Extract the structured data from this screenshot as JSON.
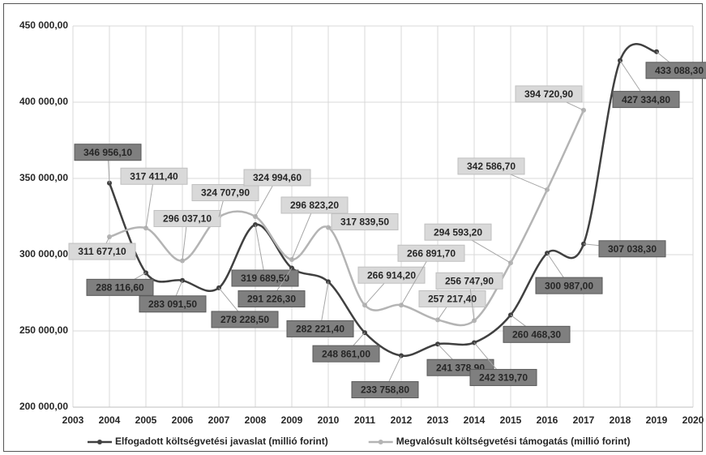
{
  "chart_data": {
    "type": "line",
    "x": [
      2004,
      2005,
      2006,
      2007,
      2008,
      2009,
      2010,
      2011,
      2012,
      2013,
      2014,
      2015,
      2016,
      2017,
      2018,
      2019
    ],
    "series": [
      {
        "name": "Elfogadott költségvetési javaslat (millió forint)",
        "color": "#404040",
        "values": [
          346956.1,
          288116.6,
          283091.5,
          278228.5,
          319689.5,
          291226.3,
          282221.4,
          248861.0,
          233758.8,
          241378.9,
          242319.7,
          260468.3,
          300987.0,
          307038.3,
          427334.8,
          433088.3
        ],
        "value_labels": [
          "346 956,10",
          "288 116,60",
          "283 091,50",
          "278 228,50",
          "319 689,50",
          "291 226,30",
          "282 221,40",
          "248 861,00",
          "233 758,80",
          "241 378,90",
          "242 319,70",
          "260 468,30",
          "300 987,00",
          "307 038,30",
          "427 334,80",
          "433 088,30"
        ]
      },
      {
        "name": "Megvalósult költségvetési támogatás (millió forint)",
        "color": "#b4b4b4",
        "values": [
          311677.1,
          317411.4,
          296037.1,
          324707.9,
          324994.6,
          296823.2,
          317839.5,
          266914.2,
          266891.7,
          257217.4,
          256747.9,
          294593.2,
          342586.7,
          394720.9,
          null,
          null
        ],
        "value_labels": [
          "311 677,10",
          "317 411,40",
          "296 037,10",
          "324 707,90",
          "324 994,60",
          "296 823,20",
          "317 839,50",
          "266 914,20",
          "266 891,70",
          "257 217,40",
          "256 747,90",
          "294 593,20",
          "342 586,70",
          "394 720,90",
          null,
          null
        ]
      }
    ],
    "xlim": [
      2003,
      2020
    ],
    "xticks": [
      2003,
      2004,
      2005,
      2006,
      2007,
      2008,
      2009,
      2010,
      2011,
      2012,
      2013,
      2014,
      2015,
      2016,
      2017,
      2018,
      2019,
      2020
    ],
    "ylim": [
      200000,
      450000
    ],
    "yticks": [
      {
        "value": 200000,
        "label": "200 000,00"
      },
      {
        "value": 250000,
        "label": "250 000,00"
      },
      {
        "value": 300000,
        "label": "300 000,00"
      },
      {
        "value": 350000,
        "label": "350 000,00"
      },
      {
        "value": 400000,
        "label": "400 000,00"
      },
      {
        "value": 450000,
        "label": "450 000,00"
      }
    ],
    "grid": true,
    "smooth": true,
    "legend": "bottom"
  }
}
